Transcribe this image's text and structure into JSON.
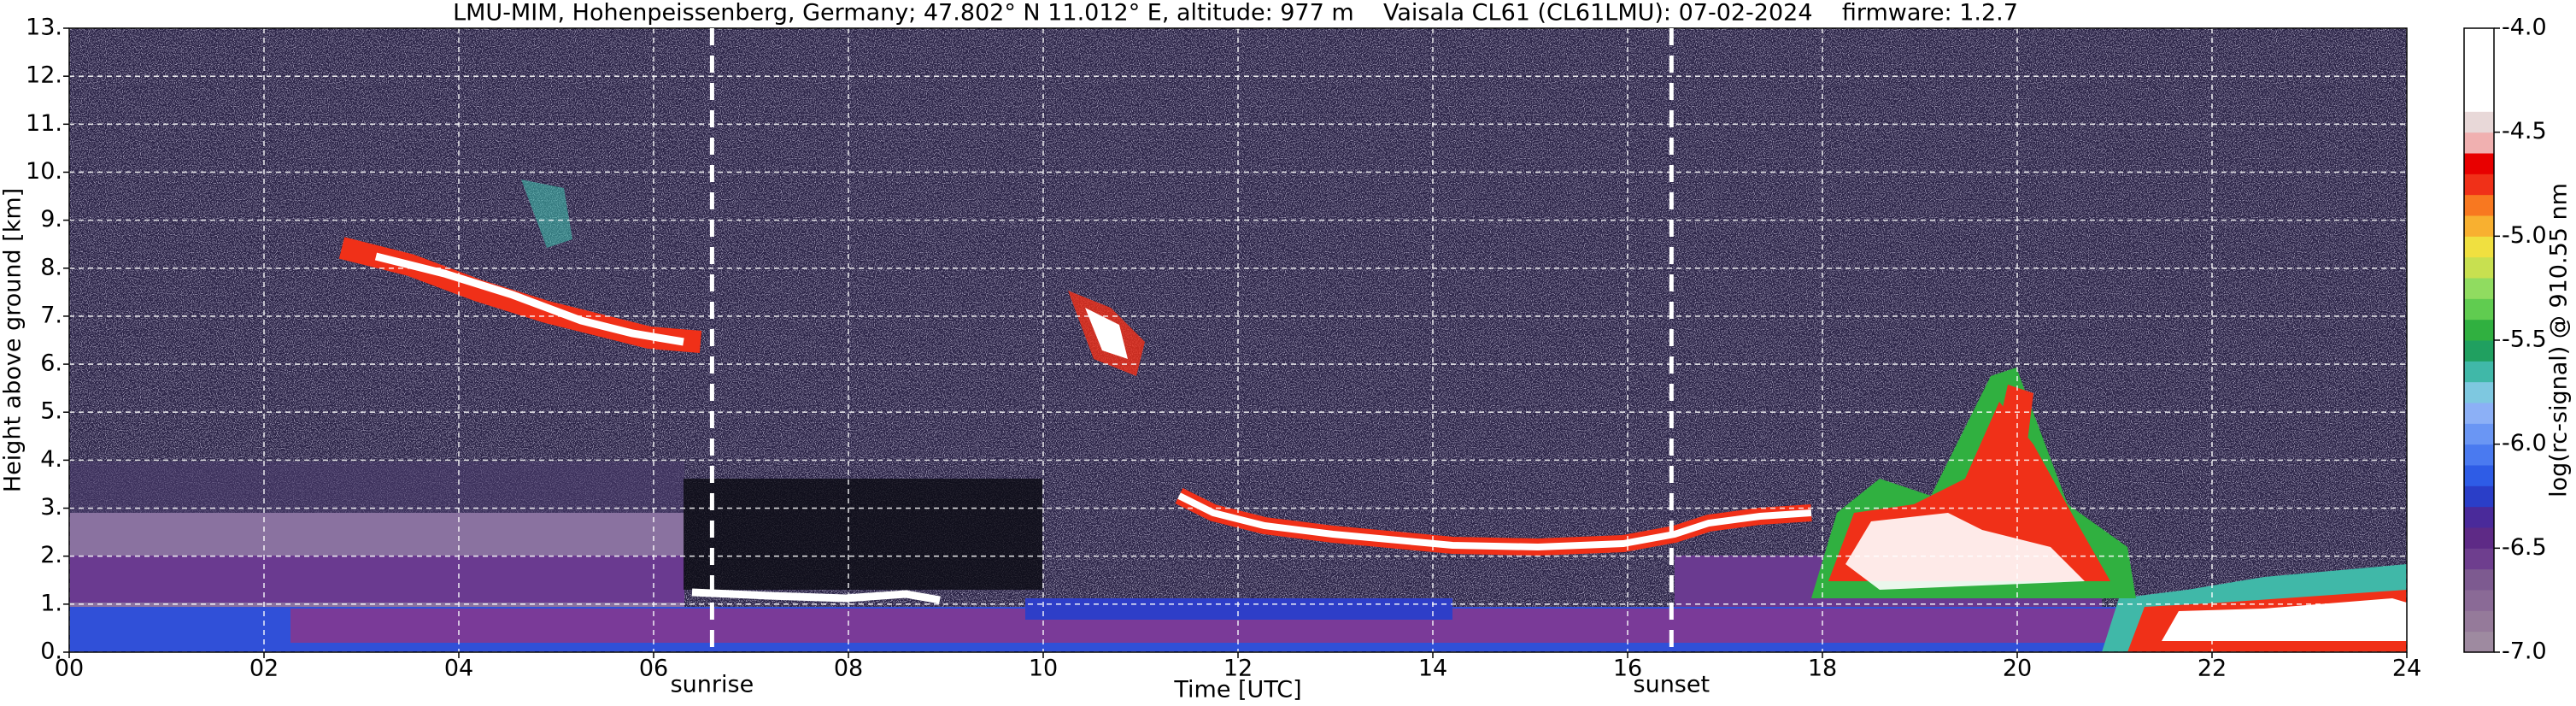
{
  "chart_data": {
    "type": "heatmap",
    "title": "LMU-MIM, Hohenpeissenberg, Germany; 47.802° N 11.012° E, altitude: 977 m    Vaisala CL61 (CL61LMU): 07-02-2024    firmware: 1.2.7",
    "xlabel": "Time [UTC]",
    "ylabel": "Height above ground [km]",
    "xlim": [
      0,
      24
    ],
    "xticks": [
      {
        "value": 0,
        "label": "00"
      },
      {
        "value": 2,
        "label": "02"
      },
      {
        "value": 4,
        "label": "04"
      },
      {
        "value": 6,
        "label": "06"
      },
      {
        "value": 8,
        "label": "08"
      },
      10,
      12,
      14,
      16,
      18,
      20,
      22,
      24
    ],
    "ylim": [
      0,
      13
    ],
    "yticks": [
      {
        "value": 0,
        "label": "0."
      },
      {
        "value": 1,
        "label": "1."
      },
      {
        "value": 2,
        "label": "2."
      },
      {
        "value": 3,
        "label": "3."
      },
      {
        "value": 4,
        "label": "4."
      },
      {
        "value": 5,
        "label": "5."
      },
      {
        "value": 6,
        "label": "6."
      },
      {
        "value": 7,
        "label": "7."
      },
      {
        "value": 8,
        "label": "8."
      },
      {
        "value": 9,
        "label": "9."
      },
      {
        "value": 10,
        "label": "10."
      },
      {
        "value": 11,
        "label": "11."
      },
      {
        "value": 12,
        "label": "12."
      },
      {
        "value": 13,
        "label": "13."
      }
    ],
    "grid": true,
    "annotations": [
      {
        "text": "sunrise",
        "x": 6.6
      },
      {
        "text": "sunset",
        "x": 16.45
      }
    ],
    "colorbar": {
      "label": "log(rc-signal) @ 910.55 nm",
      "lim": [
        -7,
        -4
      ],
      "ticks": [
        {
          "value": -7,
          "label": "-7.0"
        },
        -6.5,
        {
          "value": -6,
          "label": "-6.0"
        },
        -5.5,
        {
          "value": -5,
          "label": "-5.0"
        },
        -4.5,
        {
          "value": -4,
          "label": "-4.0"
        }
      ],
      "colors": [
        "#9e8aa0",
        "#957a9a",
        "#8a6a96",
        "#7d5a90",
        "#6e3e8e",
        "#5e2a86",
        "#4a2a9a",
        "#2a3ec8",
        "#2e5ce6",
        "#4a7af0",
        "#6a96f4",
        "#8cb0f6",
        "#7ec8e0",
        "#40b8a8",
        "#20a060",
        "#30b040",
        "#60cc50",
        "#90dc60",
        "#c8e050",
        "#f0e040",
        "#f8b030",
        "#f87820",
        "#f03018",
        "#e80000",
        "#f0b0b0",
        "#e8d8d8",
        "#ffffff",
        "#ffffff",
        "#ffffff",
        "#ffffff"
      ]
    }
  }
}
